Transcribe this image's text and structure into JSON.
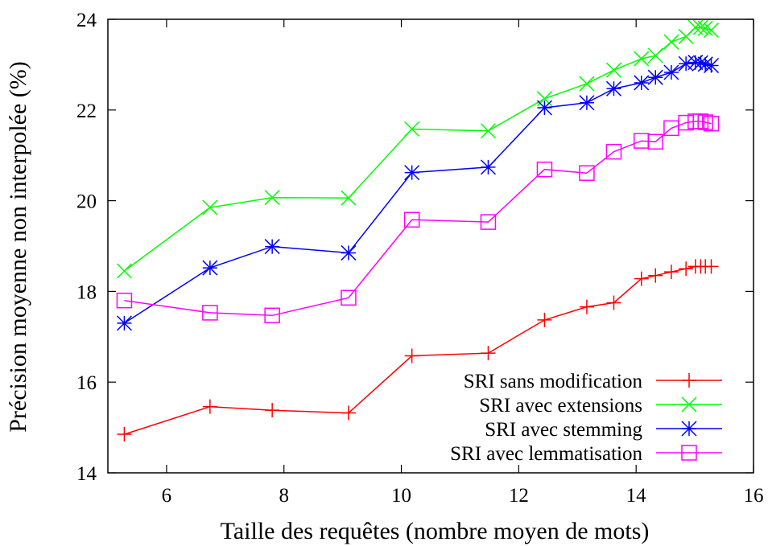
{
  "chart_data": {
    "type": "line",
    "title": "",
    "xlabel": "Taille des requêtes (nombre moyen de mots)",
    "ylabel": "Précision moyenne non interpolée (%)",
    "xlim": [
      5,
      16
    ],
    "ylim": [
      14,
      24
    ],
    "xticks": [
      6,
      8,
      10,
      12,
      14,
      16
    ],
    "yticks": [
      14,
      16,
      18,
      20,
      22,
      24
    ],
    "grid": false,
    "legend_position": "bottom-right",
    "series": [
      {
        "name": "SRI sans modification",
        "color": "#ff0000",
        "marker": "plus",
        "x": [
          5.28,
          6.74,
          7.8,
          9.1,
          10.18,
          11.48,
          12.44,
          13.16,
          13.62,
          14.09,
          14.33,
          14.6,
          14.85,
          15.01,
          15.1,
          15.18,
          15.28
        ],
        "y": [
          14.85,
          15.46,
          15.38,
          15.32,
          16.58,
          16.64,
          17.37,
          17.66,
          17.75,
          18.28,
          18.35,
          18.43,
          18.5,
          18.55,
          18.55,
          18.55,
          18.55
        ]
      },
      {
        "name": "SRI avec extensions",
        "color": "#00ff00",
        "marker": "cross",
        "x": [
          5.28,
          6.74,
          7.8,
          9.1,
          10.18,
          11.48,
          12.44,
          13.16,
          13.62,
          14.09,
          14.33,
          14.6,
          14.85,
          15.01,
          15.1,
          15.18,
          15.28
        ],
        "y": [
          18.45,
          19.85,
          20.07,
          20.06,
          21.58,
          21.54,
          22.25,
          22.58,
          22.88,
          23.13,
          23.2,
          23.5,
          23.62,
          23.82,
          23.82,
          23.8,
          23.76
        ]
      },
      {
        "name": "SRI avec stemming",
        "color": "#0000ff",
        "marker": "star",
        "x": [
          5.28,
          6.74,
          7.8,
          9.1,
          10.18,
          11.48,
          12.44,
          13.16,
          13.62,
          14.09,
          14.33,
          14.6,
          14.85,
          15.01,
          15.1,
          15.18,
          15.28
        ],
        "y": [
          17.3,
          18.52,
          18.99,
          18.85,
          20.62,
          20.74,
          22.05,
          22.16,
          22.47,
          22.6,
          22.72,
          22.83,
          23.02,
          23.05,
          23.04,
          23.01,
          22.98
        ]
      },
      {
        "name": "SRI avec lemmatisation",
        "color": "#ff00ff",
        "marker": "square",
        "x": [
          5.28,
          6.74,
          7.8,
          9.1,
          10.18,
          11.48,
          12.44,
          13.16,
          13.62,
          14.09,
          14.33,
          14.6,
          14.85,
          15.01,
          15.1,
          15.18,
          15.28
        ],
        "y": [
          17.8,
          17.53,
          17.47,
          17.86,
          19.58,
          19.53,
          20.69,
          20.61,
          21.08,
          21.32,
          21.3,
          21.6,
          21.72,
          21.75,
          21.75,
          21.73,
          21.7
        ]
      }
    ]
  }
}
